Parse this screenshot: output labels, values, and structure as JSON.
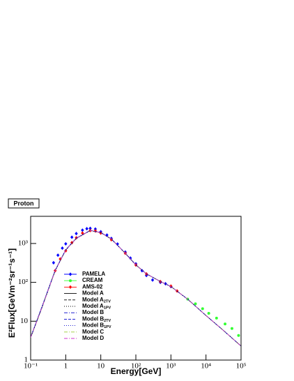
{
  "chart_data": {
    "type": "line",
    "title": "Proton",
    "xlabel": "Energy[GeV]",
    "ylabel": "E²Flux[GeVm⁻²sr⁻¹s⁻¹]",
    "log_x": true,
    "log_y": true,
    "xlim": [
      0.1,
      100000
    ],
    "ylim": [
      1,
      5000
    ],
    "xticks": [
      {
        "value": 0.1,
        "label": "10⁻¹"
      },
      1,
      10,
      {
        "value": 100,
        "label": "10²"
      },
      {
        "value": 1000,
        "label": "10³"
      },
      {
        "value": 10000,
        "label": "10⁴"
      },
      {
        "value": 100000,
        "label": "10⁵"
      }
    ],
    "yticks": [
      1,
      10,
      {
        "value": 100,
        "label": "10²"
      },
      {
        "value": 1000,
        "label": "10³"
      }
    ],
    "x": [
      0.1,
      0.2,
      0.5,
      1,
      2,
      5,
      10,
      20,
      50,
      100,
      200,
      500,
      1000,
      3000,
      10000,
      30000,
      100000
    ],
    "series": [
      {
        "name": "PAMELA",
        "color": "#0000ff",
        "marker": "diamond",
        "x": [
          0.45,
          0.6,
          0.8,
          1,
          1.5,
          2,
          3,
          4,
          5,
          7,
          10,
          15,
          20,
          30,
          50,
          70,
          100,
          150,
          200,
          300,
          500,
          700,
          1000
        ],
        "values": [
          320,
          500,
          760,
          980,
          1450,
          1800,
          2200,
          2400,
          2450,
          2350,
          2000,
          1650,
          1350,
          970,
          600,
          420,
          300,
          200,
          150,
          115,
          100,
          92,
          78
        ]
      },
      {
        "name": "CREAM",
        "color": "#33ff33",
        "marker": "circle",
        "x": [
          3000,
          5000,
          8000,
          12000,
          20000,
          35000,
          55000,
          85000
        ],
        "values": [
          37,
          28,
          21,
          16,
          12,
          8.5,
          6.5,
          4.3
        ]
      },
      {
        "name": "AMS-02",
        "color": "#ff0000",
        "marker": "diamond",
        "x": [
          0.5,
          0.7,
          1,
          1.5,
          2,
          3,
          5,
          7,
          10,
          20,
          50,
          100,
          200,
          500,
          1000,
          1500
        ],
        "values": [
          200,
          400,
          650,
          1050,
          1400,
          1850,
          2150,
          2100,
          1850,
          1250,
          560,
          280,
          165,
          105,
          80,
          60
        ]
      },
      {
        "name": "Model A",
        "color": "#000000",
        "dash": "solid",
        "values": [
          3.8,
          20,
          200,
          680,
          1350,
          2150,
          1900,
          1300,
          560,
          280,
          165,
          105,
          78,
          37,
          14,
          6,
          2.3
        ]
      },
      {
        "name": "Model A",
        "subscript": "2TV",
        "color": "#000000",
        "dash": "dashed",
        "values": [
          3.8,
          20,
          200,
          680,
          1350,
          2150,
          1900,
          1300,
          560,
          280,
          165,
          105,
          78,
          37,
          14,
          6,
          2.3
        ]
      },
      {
        "name": "Model A",
        "subscript": "1PV",
        "color": "#000000",
        "dash": "dotted",
        "values": [
          3.8,
          20,
          200,
          680,
          1350,
          2150,
          1900,
          1300,
          560,
          280,
          165,
          105,
          78,
          37,
          14,
          6,
          2.3
        ]
      },
      {
        "name": "Model B",
        "color": "#0000cc",
        "dash": "dashdot",
        "values": [
          3.9,
          21,
          205,
          690,
          1370,
          2170,
          1920,
          1310,
          565,
          282,
          166,
          105,
          78,
          37,
          14,
          6,
          2.3
        ]
      },
      {
        "name": "Model B",
        "subscript": "2TV",
        "color": "#0000cc",
        "dash": "dashed",
        "values": [
          3.9,
          21,
          205,
          690,
          1370,
          2170,
          1920,
          1310,
          565,
          282,
          166,
          105,
          78,
          37,
          14,
          6,
          2.3
        ]
      },
      {
        "name": "Model B",
        "subscript": "1PV",
        "color": "#0000cc",
        "dash": "dotted",
        "values": [
          3.9,
          21,
          205,
          690,
          1370,
          2170,
          1920,
          1310,
          565,
          282,
          166,
          105,
          78,
          37,
          14,
          6,
          2.3
        ]
      },
      {
        "name": "Model C",
        "color": "#99cc33",
        "dash": "dashdot",
        "values": [
          3.8,
          20,
          200,
          680,
          1350,
          2150,
          1900,
          1300,
          560,
          280,
          165,
          105,
          78,
          37,
          14,
          6,
          2.3
        ]
      },
      {
        "name": "Model D",
        "color": "#cc33cc",
        "dash": "dashdot",
        "values": [
          3.8,
          20,
          200,
          680,
          1350,
          2150,
          1900,
          1300,
          560,
          280,
          165,
          105,
          78,
          37,
          14,
          6,
          2.3
        ]
      }
    ]
  }
}
